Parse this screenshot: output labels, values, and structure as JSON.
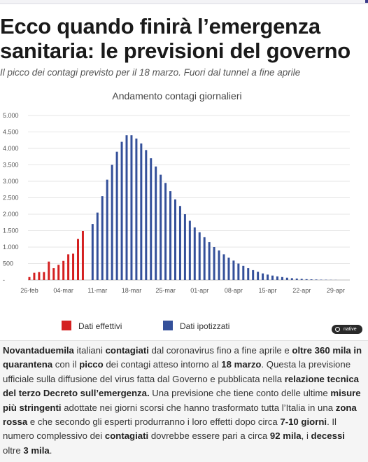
{
  "header": {
    "title": "Ecco quando finirà l’emergenza sanitaria: le previsioni del governo",
    "subtitle": "Il picco dei contagi previsto per il 18 marzo. Fuori dal tunnel a fine aprile"
  },
  "chart_data": {
    "type": "bar",
    "title": "Andamento contagi giornalieri",
    "ylim": [
      0,
      5000
    ],
    "yticks": [
      0,
      500,
      1000,
      1500,
      2000,
      2500,
      3000,
      3500,
      4000,
      4500,
      5000
    ],
    "ytick_labels": [
      "-",
      "500",
      "1.000",
      "1.500",
      "2.000",
      "2.500",
      "3.000",
      "3.500",
      "4.000",
      "4.500",
      "5.000"
    ],
    "xtick_labels": [
      "26-feb",
      "04-mar",
      "11-mar",
      "18-mar",
      "25-mar",
      "01-apr",
      "08-apr",
      "15-apr",
      "22-apr",
      "29-apr"
    ],
    "grid": true,
    "legend_position": "bottom",
    "series": [
      {
        "name": "Dati effettivi",
        "color": "#d42020",
        "x": [
          "26-feb",
          "27-feb",
          "28-feb",
          "29-feb",
          "01-mar",
          "02-mar",
          "03-mar",
          "04-mar",
          "05-mar",
          "06-mar",
          "07-mar",
          "08-mar",
          "09-mar"
        ],
        "values": [
          90,
          220,
          240,
          240,
          560,
          360,
          460,
          580,
          780,
          800,
          1250,
          1490,
          0
        ]
      },
      {
        "name": "Dati ipotizzati",
        "color": "#34509a",
        "x": [
          "10-mar",
          "11-mar",
          "12-mar",
          "13-mar",
          "14-mar",
          "15-mar",
          "16-mar",
          "17-mar",
          "18-mar",
          "19-mar",
          "20-mar",
          "21-mar",
          "22-mar",
          "23-mar",
          "24-mar",
          "25-mar",
          "26-mar",
          "27-mar",
          "28-mar",
          "29-mar",
          "30-mar",
          "31-mar",
          "01-apr",
          "02-apr",
          "03-apr",
          "04-apr",
          "05-apr",
          "06-apr",
          "07-apr",
          "08-apr",
          "09-apr",
          "10-apr",
          "11-apr",
          "12-apr",
          "13-apr",
          "14-apr",
          "15-apr",
          "16-apr",
          "17-apr",
          "18-apr",
          "19-apr",
          "20-apr",
          "21-apr",
          "22-apr",
          "23-apr",
          "24-apr",
          "25-apr",
          "26-apr",
          "27-apr",
          "28-apr",
          "29-apr"
        ],
        "values": [
          1700,
          2050,
          2550,
          3050,
          3500,
          3900,
          4200,
          4400,
          4400,
          4300,
          4150,
          3950,
          3700,
          3450,
          3200,
          2950,
          2700,
          2450,
          2250,
          2000,
          1800,
          1600,
          1450,
          1300,
          1150,
          1000,
          900,
          780,
          680,
          590,
          500,
          430,
          360,
          300,
          250,
          200,
          165,
          135,
          110,
          90,
          70,
          55,
          45,
          35,
          25,
          20,
          15,
          10,
          8,
          5,
          3
        ]
      }
    ]
  },
  "native_label": "native",
  "article": {
    "p1": "Novantaduemila",
    "p2": " italiani ",
    "p3": "contagiati",
    "p4": " dal coronavirus fino a fine aprile e ",
    "p5": "oltre 360 mila in quarantena",
    "p6": " con il ",
    "p7": "picco",
    "p8": " dei contagi atteso intorno al ",
    "p9": "18 marzo",
    "p10": ". Questa la previsione ufficiale sulla diffusione del virus fatta dal Governo e pubblicata nella ",
    "p11": "relazione tecnica del terzo Decreto sull’emergenza.",
    "p12": " Una previsione che tiene conto delle ultime ",
    "p13": "misure più stringenti",
    "p14": " adottate nei giorni scorsi che hanno trasformato tutta l’Italia in una ",
    "p15": "zona rossa",
    "p16": " e che secondo gli esperti produrranno i loro effetti dopo circa ",
    "p17": "7-10 giorni",
    "p18": ". Il numero complessivo dei ",
    "p19": "contagiati",
    "p20": " dovrebbe essere pari a circa ",
    "p21": "92 mila",
    "p22": ", i ",
    "p23": "decessi",
    "p24": " oltre ",
    "p25": "3 mila",
    "p26": "."
  }
}
